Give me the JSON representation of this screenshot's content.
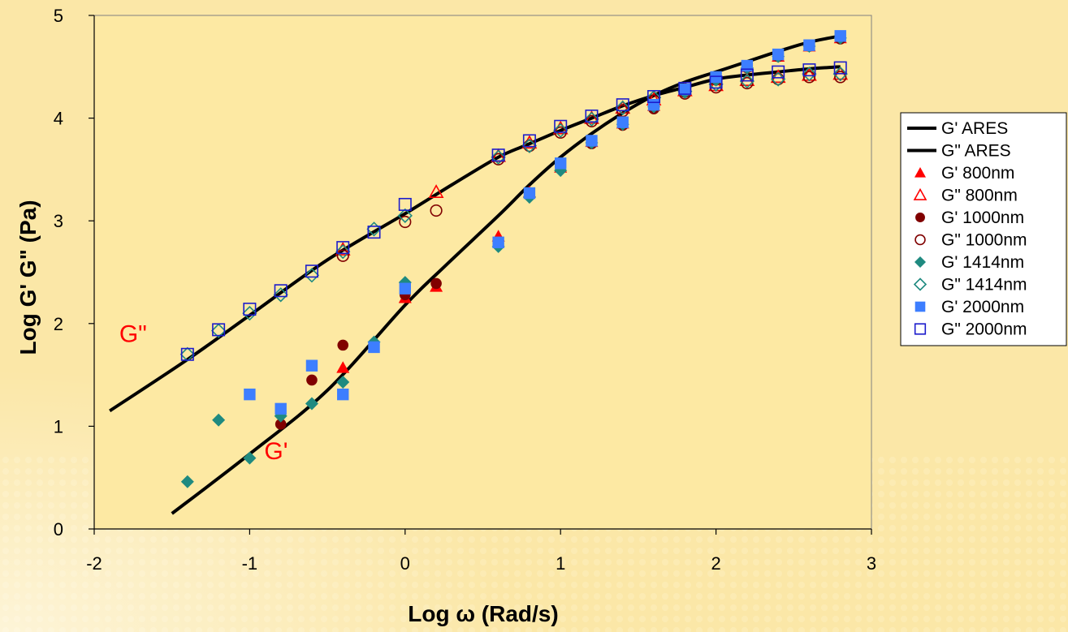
{
  "chart_data": {
    "type": "scatter",
    "xlabel": "Log ω (Rad/s)",
    "ylabel": "Log G' G\" (Pa)",
    "xlim": [
      -2,
      3
    ],
    "ylim": [
      0,
      5
    ],
    "x_ticks": [
      "-2",
      "-1",
      "0",
      "1",
      "2",
      "3"
    ],
    "y_ticks": [
      "0",
      "1",
      "2",
      "3",
      "4",
      "5"
    ],
    "grid": false,
    "legend_position": "right",
    "annotations": [
      {
        "text": "G\"",
        "x": -1.75,
        "y": 1.82
      },
      {
        "text": "G'",
        "x": -0.83,
        "y": 0.68
      }
    ],
    "series": [
      {
        "name": "G' ARES",
        "style": "line",
        "color": "#000000",
        "x": [
          -1.5,
          -1.0,
          -0.5,
          0.0,
          0.25,
          0.6,
          0.8,
          1.0,
          1.2,
          1.4,
          1.6,
          1.8,
          2.0,
          2.2,
          2.4,
          2.6,
          2.8
        ],
        "y": [
          0.15,
          0.73,
          1.35,
          2.18,
          2.55,
          3.05,
          3.35,
          3.62,
          3.85,
          4.05,
          4.22,
          4.35,
          4.45,
          4.55,
          4.65,
          4.74,
          4.8
        ]
      },
      {
        "name": "G\" ARES",
        "style": "line",
        "color": "#000000",
        "x": [
          -1.9,
          -1.4,
          -1.0,
          -0.5,
          0.0,
          0.3,
          0.6,
          0.8,
          1.0,
          1.2,
          1.4,
          1.6,
          1.8,
          2.0,
          2.2,
          2.4,
          2.6,
          2.8
        ],
        "y": [
          1.15,
          1.65,
          2.08,
          2.62,
          3.07,
          3.35,
          3.62,
          3.75,
          3.88,
          4.0,
          4.12,
          4.22,
          4.3,
          4.38,
          4.42,
          4.45,
          4.48,
          4.5
        ]
      },
      {
        "name": "G' 800nm",
        "marker": "triangle",
        "filled": true,
        "color": "#ff0000",
        "x": [
          -0.4,
          0.0,
          0.2,
          0.6,
          0.8,
          1.0,
          1.2,
          1.4,
          1.6,
          1.8,
          2.0,
          2.2,
          2.4,
          2.6,
          2.8
        ],
        "y": [
          1.57,
          2.25,
          2.36,
          2.85,
          3.28,
          3.52,
          3.77,
          3.95,
          4.12,
          4.27,
          4.38,
          4.5,
          4.6,
          4.7,
          4.78
        ]
      },
      {
        "name": "G\" 800nm",
        "marker": "triangle",
        "filled": false,
        "color": "#ff0000",
        "x": [
          -0.4,
          0.2,
          0.6,
          0.8,
          1.0,
          1.2,
          1.4,
          1.6,
          1.8,
          2.0,
          2.2,
          2.4,
          2.6,
          2.8
        ],
        "y": [
          2.72,
          3.28,
          3.63,
          3.76,
          3.9,
          4.0,
          4.1,
          4.18,
          4.27,
          4.32,
          4.37,
          4.4,
          4.42,
          4.43
        ]
      },
      {
        "name": "G' 1000nm",
        "marker": "circle",
        "filled": true,
        "color": "#800000",
        "x": [
          -0.8,
          -0.6,
          -0.4,
          0.0,
          0.2,
          0.6,
          0.8,
          1.0,
          1.2,
          1.4,
          1.6,
          1.8,
          2.0,
          2.2,
          2.4,
          2.6,
          2.8
        ],
        "y": [
          1.02,
          1.45,
          1.79,
          2.28,
          2.39,
          2.78,
          3.27,
          3.52,
          3.75,
          3.93,
          4.09,
          4.25,
          4.37,
          4.49,
          4.6,
          4.7,
          4.77
        ]
      },
      {
        "name": "G\" 1000nm",
        "marker": "circle",
        "filled": false,
        "color": "#800000",
        "x": [
          -0.4,
          0.0,
          0.2,
          0.6,
          0.8,
          1.0,
          1.2,
          1.4,
          1.6,
          1.8,
          2.0,
          2.2,
          2.4,
          2.6,
          2.8
        ],
        "y": [
          2.66,
          2.99,
          3.1,
          3.6,
          3.73,
          3.86,
          3.97,
          4.07,
          4.17,
          4.24,
          4.3,
          4.34,
          4.38,
          4.4,
          4.4
        ]
      },
      {
        "name": "G' 1414nm",
        "marker": "diamond",
        "filled": true,
        "color": "#1f8a80",
        "x": [
          -1.4,
          -1.2,
          -1.0,
          -0.8,
          -0.6,
          -0.4,
          -0.2,
          0.0,
          0.6,
          0.8,
          1.0,
          1.2,
          1.4,
          1.6,
          1.8,
          2.0,
          2.2,
          2.4,
          2.6,
          2.8
        ],
        "y": [
          0.46,
          1.06,
          0.69,
          1.1,
          1.22,
          1.43,
          1.82,
          2.4,
          2.75,
          3.23,
          3.49,
          3.76,
          3.94,
          4.11,
          4.26,
          4.37,
          4.49,
          4.6,
          4.7,
          4.78
        ]
      },
      {
        "name": "G\" 1414nm",
        "marker": "diamond",
        "filled": false,
        "color": "#1f8a80",
        "x": [
          -1.4,
          -1.2,
          -1.0,
          -0.8,
          -0.6,
          -0.4,
          -0.2,
          0.0,
          0.6,
          0.8,
          1.0,
          1.2,
          1.4,
          1.6,
          1.8,
          2.0,
          2.2,
          2.4,
          2.6,
          2.8
        ],
        "y": [
          1.7,
          1.93,
          2.1,
          2.28,
          2.47,
          2.7,
          2.92,
          3.05,
          3.62,
          3.73,
          3.88,
          3.99,
          4.1,
          4.2,
          4.26,
          4.33,
          4.36,
          4.38,
          4.43,
          4.43
        ]
      },
      {
        "name": "G' 2000nm",
        "marker": "square",
        "filled": true,
        "color": "#3d7eff",
        "x": [
          -1.0,
          -0.8,
          -0.6,
          -0.4,
          -0.2,
          0.0,
          0.6,
          0.8,
          1.0,
          1.2,
          1.4,
          1.6,
          1.8,
          2.0,
          2.2,
          2.4,
          2.6,
          2.8
        ],
        "y": [
          1.31,
          1.17,
          1.59,
          1.31,
          1.77,
          2.34,
          2.79,
          3.27,
          3.56,
          3.78,
          3.96,
          4.13,
          4.28,
          4.4,
          4.51,
          4.62,
          4.71,
          4.8
        ]
      },
      {
        "name": "G\" 2000nm",
        "marker": "square",
        "filled": false,
        "color": "#1c1ccc",
        "x": [
          -1.4,
          -1.2,
          -1.0,
          -0.8,
          -0.6,
          -0.4,
          -0.2,
          0.0,
          0.6,
          0.8,
          1.0,
          1.2,
          1.4,
          1.6,
          1.8,
          2.0,
          2.2,
          2.4,
          2.6,
          2.8
        ],
        "y": [
          1.7,
          1.94,
          2.14,
          2.32,
          2.51,
          2.74,
          2.89,
          3.16,
          3.64,
          3.78,
          3.92,
          4.02,
          4.13,
          4.21,
          4.29,
          4.35,
          4.42,
          4.45,
          4.47,
          4.49
        ]
      }
    ]
  }
}
